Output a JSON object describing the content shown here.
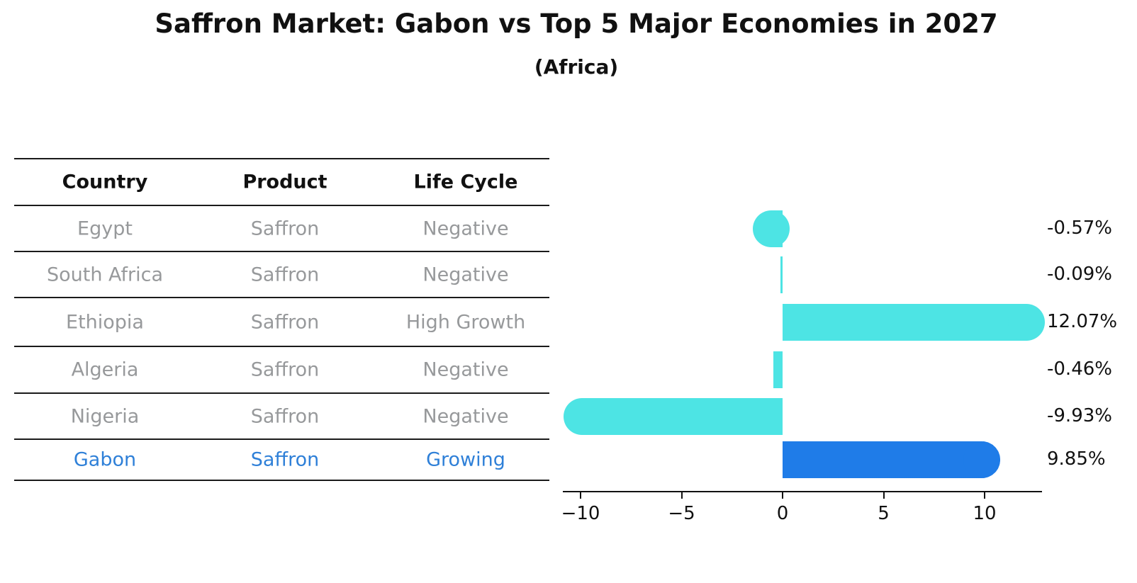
{
  "title": "Saffron Market: Gabon vs Top 5 Major Economies in 2027",
  "subtitle": "(Africa)",
  "table": {
    "headers": [
      "Country",
      "Product",
      "Life Cycle"
    ],
    "rows": [
      {
        "country": "Egypt",
        "product": "Saffron",
        "life_cycle": "Negative",
        "highlight": false
      },
      {
        "country": "South Africa",
        "product": "Saffron",
        "life_cycle": "Negative",
        "highlight": false
      },
      {
        "country": "Ethiopia",
        "product": "Saffron",
        "life_cycle": "High Growth",
        "highlight": false
      },
      {
        "country": "Algeria",
        "product": "Saffron",
        "life_cycle": "Negative",
        "highlight": false
      },
      {
        "country": "Nigeria",
        "product": "Saffron",
        "life_cycle": "Negative",
        "highlight": false
      },
      {
        "country": "Gabon",
        "product": "Saffron",
        "life_cycle": "Growing",
        "highlight": true
      }
    ]
  },
  "chart_data": {
    "type": "bar",
    "orientation": "horizontal",
    "title": "Saffron Market: Gabon vs Top 5 Major Economies in 2027 (Africa)",
    "categories": [
      "Egypt",
      "South Africa",
      "Ethiopia",
      "Algeria",
      "Nigeria",
      "Gabon"
    ],
    "values": [
      -0.57,
      -0.09,
      12.07,
      -0.46,
      -9.93,
      9.85
    ],
    "value_labels": [
      "-0.57%",
      "-0.09%",
      "12.07%",
      "-0.46%",
      "-9.93%",
      "9.85%"
    ],
    "x_ticks": [
      -10,
      -5,
      0,
      5,
      10
    ],
    "x_tick_labels": [
      "−10",
      "−5",
      "0",
      "5",
      "10"
    ],
    "xlim": [
      -10.9,
      12.9
    ],
    "grid": false,
    "legend": "none",
    "bar_color": "#4de4e4",
    "highlight_bar_color": "#1f7ce8",
    "highlight_index": 5,
    "rounded_caps": [
      true,
      false,
      true,
      false,
      true,
      true
    ]
  },
  "colors": {
    "background": "#ffffff",
    "title_text": "#111111",
    "table_line": "#1a1a1a",
    "table_header_text": "#111111",
    "table_body_text": "#97999b",
    "highlight_text": "#2f80d8",
    "accent_cyan": "#4de4e4",
    "accent_blue": "#1f7ce8"
  }
}
